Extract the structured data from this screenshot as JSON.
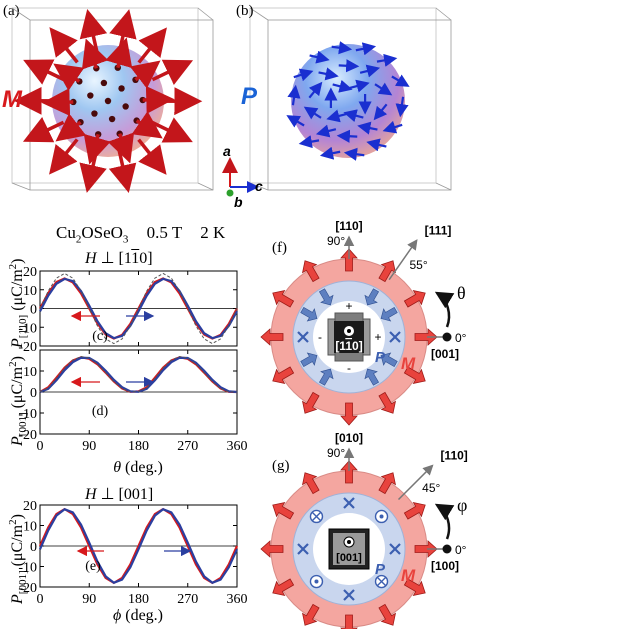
{
  "panel_labels": {
    "a": "(a)",
    "b": "(b)",
    "c": "(c)",
    "d": "(d)",
    "e": "(e)",
    "f": "(f)",
    "g": "(g)"
  },
  "sphere_labels": {
    "magnetization": "M",
    "polarization": "P"
  },
  "axes_triad": {
    "a": "a",
    "b": "b",
    "c": "c"
  },
  "conditions": {
    "material": "Cu2OSeO3",
    "field": "0.5 T",
    "temperature": "2 K"
  },
  "field_direction_top": "H ⊥ [110]",
  "field_direction_bottom": "H ⊥ [001]",
  "chart_data": [
    {
      "type": "line",
      "panel": "(c)",
      "ylabel": "P[110] (μC/m²)",
      "xlabel": "",
      "xlim": [
        0,
        360
      ],
      "ylim": [
        -20,
        20
      ],
      "yticks": [
        -20,
        -10,
        0,
        10,
        20
      ],
      "xticks": [
        0,
        90,
        180,
        270,
        360
      ],
      "x": [
        0,
        15,
        30,
        45,
        60,
        75,
        90,
        105,
        120,
        135,
        150,
        165,
        180,
        195,
        210,
        225,
        240,
        255,
        270,
        285,
        300,
        315,
        330,
        345,
        360
      ],
      "series": [
        {
          "color": "#d7191c",
          "values": [
            0,
            8.2,
            14.1,
            16.0,
            13.9,
            8.0,
            0,
            -8.0,
            -13.9,
            -16.0,
            -14.1,
            -8.2,
            0,
            8.2,
            14.1,
            16.0,
            13.9,
            8.0,
            0,
            -8.0,
            -13.9,
            -16.0,
            -14.1,
            -8.2,
            0
          ]
        },
        {
          "color": "#2b3fa0",
          "values": [
            -1.5,
            6.8,
            13.2,
            15.8,
            14.6,
            9.3,
            1.5,
            -6.8,
            -13.2,
            -15.8,
            -14.6,
            -9.3,
            -1.5,
            6.8,
            13.2,
            15.8,
            14.6,
            9.3,
            1.5,
            -6.8,
            -13.2,
            -15.8,
            -14.6,
            -9.3,
            -1.5
          ]
        },
        {
          "color": "#555555",
          "dashed": true,
          "values": [
            0,
            9.3,
            16.2,
            18.7,
            16.2,
            9.3,
            0,
            -9.3,
            -16.2,
            -18.7,
            -16.2,
            -9.3,
            0,
            9.3,
            16.2,
            18.7,
            16.2,
            9.3,
            0,
            -9.3,
            -16.2,
            -18.7,
            -16.2,
            -9.3,
            0
          ]
        }
      ]
    },
    {
      "type": "line",
      "panel": "(d)",
      "ylabel": "P[001] (μC/m²)",
      "xlabel": "θ (deg.)",
      "xlim": [
        0,
        360
      ],
      "ylim": [
        -20,
        20
      ],
      "yticks": [
        -20,
        -10,
        0,
        10,
        20
      ],
      "xticks": [
        0,
        90,
        180,
        270,
        360
      ],
      "x": [
        0,
        15,
        30,
        45,
        60,
        75,
        90,
        105,
        120,
        135,
        150,
        165,
        180,
        195,
        210,
        225,
        240,
        255,
        270,
        285,
        300,
        315,
        330,
        345,
        360
      ],
      "series": [
        {
          "color": "#d7191c",
          "values": [
            0,
            2.2,
            6.8,
            11.6,
            15.0,
            16.5,
            15.8,
            13.2,
            9.2,
            5.0,
            1.7,
            0.1,
            0.3,
            2.2,
            6.8,
            11.6,
            15.0,
            16.5,
            15.8,
            13.2,
            9.2,
            5.0,
            1.7,
            0.1,
            0
          ]
        },
        {
          "color": "#2b3fa0",
          "values": [
            0,
            1.5,
            5.6,
            10.4,
            14.2,
            16.3,
            16.2,
            13.9,
            10.1,
            5.8,
            2.3,
            0.3,
            0.1,
            1.5,
            5.6,
            10.4,
            14.2,
            16.3,
            16.2,
            13.9,
            10.1,
            5.8,
            2.3,
            0.3,
            0
          ]
        },
        {
          "color": "#555555",
          "dashed": true,
          "values": [
            0,
            1.9,
            6.5,
            11.5,
            15.2,
            16.9,
            16.2,
            13.3,
            9.2,
            4.9,
            1.6,
            0.1,
            0.2,
            1.9,
            6.5,
            11.5,
            15.2,
            16.9,
            16.2,
            13.3,
            9.2,
            4.9,
            1.6,
            0.1,
            0
          ]
        }
      ]
    },
    {
      "type": "line",
      "panel": "(e)",
      "ylabel": "P[001] (μC/m²)",
      "xlabel": "φ (deg.)",
      "xlim": [
        0,
        360
      ],
      "ylim": [
        -20,
        20
      ],
      "yticks": [
        -20,
        -10,
        0,
        10,
        20
      ],
      "xticks": [
        0,
        90,
        180,
        270,
        360
      ],
      "x": [
        0,
        15,
        30,
        45,
        60,
        75,
        90,
        105,
        120,
        135,
        150,
        165,
        180,
        195,
        210,
        225,
        240,
        255,
        270,
        285,
        300,
        315,
        330,
        345,
        360
      ],
      "series": [
        {
          "color": "#d7191c",
          "values": [
            0,
            9.0,
            15.6,
            18.0,
            15.6,
            9.0,
            0,
            -9.0,
            -15.6,
            -18.0,
            -15.6,
            -9.0,
            0,
            9.0,
            15.6,
            18.0,
            15.6,
            9.0,
            0,
            -9.0,
            -15.6,
            -18.0,
            -15.6,
            -9.0,
            0
          ]
        },
        {
          "color": "#2b3fa0",
          "values": [
            -1.6,
            7.6,
            14.8,
            17.9,
            16.4,
            10.4,
            1.6,
            -7.6,
            -14.8,
            -17.9,
            -16.4,
            -10.4,
            -1.6,
            7.6,
            14.8,
            17.9,
            16.4,
            10.4,
            1.6,
            -7.6,
            -14.8,
            -17.9,
            -16.4,
            -10.4,
            -1.6
          ]
        }
      ]
    }
  ],
  "diagram_f": {
    "directions": {
      "up": "[110]",
      "diag": "[111]",
      "right": "[001]"
    },
    "angles": {
      "up": "90°",
      "diag": "55°",
      "right": "0°"
    },
    "rotation_symbol": "θ",
    "sample_label": "[110]",
    "signs": {
      "top": "+",
      "bottom": "-",
      "left": "-",
      "right": "+"
    },
    "ring_labels": {
      "outer": "M",
      "inner": "P"
    }
  },
  "diagram_g": {
    "directions": {
      "up": "[010]",
      "diag": "[110]",
      "right": "[100]"
    },
    "angles": {
      "up": "90°",
      "diag": "45°",
      "right": "0°"
    },
    "rotation_symbol": "φ",
    "sample_label": "[001]",
    "ring_labels": {
      "outer": "M",
      "inner": "P"
    }
  },
  "colors": {
    "red": "#d7191c",
    "blue": "#2b3fa0",
    "outer_ring": "#f4a6a0",
    "inner_ring": "#c9d6ee",
    "arrow_blue": "#5d7fc0"
  }
}
